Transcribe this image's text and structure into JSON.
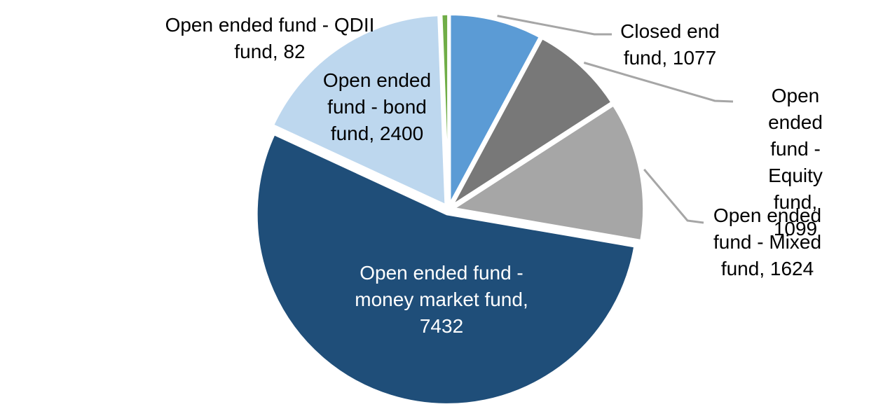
{
  "chart_data": {
    "type": "pie",
    "title": "",
    "legend": "none",
    "background": "#FFFFFF",
    "direction": "clockwise",
    "start_angle_deg": 0,
    "total": 13714,
    "leader_line_color": "#A6A6A6",
    "slice_border_color": "#FFFFFF",
    "slices": [
      {
        "id": "closed-end-fund",
        "label": "Closed end fund",
        "value": 1077,
        "color": "#5B9BD5",
        "label_text": "Closed end\nfund, 1077",
        "label_color": "#000000",
        "label_placement": "callout-right"
      },
      {
        "id": "equity-fund",
        "label": "Open ended fund - Equity fund",
        "value": 1099,
        "color": "#787878",
        "label_text": "Open ended\nfund - Equity\nfund, 1099",
        "label_color": "#000000",
        "label_placement": "callout-right"
      },
      {
        "id": "mixed-fund",
        "label": "Open ended fund - Mixed fund",
        "value": 1624,
        "color": "#A6A6A6",
        "label_text": "Open ended\nfund - Mixed\nfund, 1624",
        "label_color": "#000000",
        "label_placement": "callout-right"
      },
      {
        "id": "money-market-fund",
        "label": "Open ended fund - money market fund",
        "value": 7432,
        "color": "#1F4E79",
        "label_text": "Open ended fund -\nmoney market fund,\n7432",
        "label_color": "#FFFFFF",
        "label_placement": "inside"
      },
      {
        "id": "bond-fund",
        "label": "Open ended fund - bond fund",
        "value": 2400,
        "color": "#BDD7EE",
        "label_text": "Open ended\nfund - bond\nfund, 2400",
        "label_color": "#000000",
        "label_placement": "inside"
      },
      {
        "id": "qdii-fund",
        "label": "Open ended fund - QDII fund",
        "value": 82,
        "color": "#70AD47",
        "label_text": "Open ended fund - QDII\nfund, 82",
        "label_color": "#000000",
        "label_placement": "outside-top-left"
      }
    ]
  }
}
